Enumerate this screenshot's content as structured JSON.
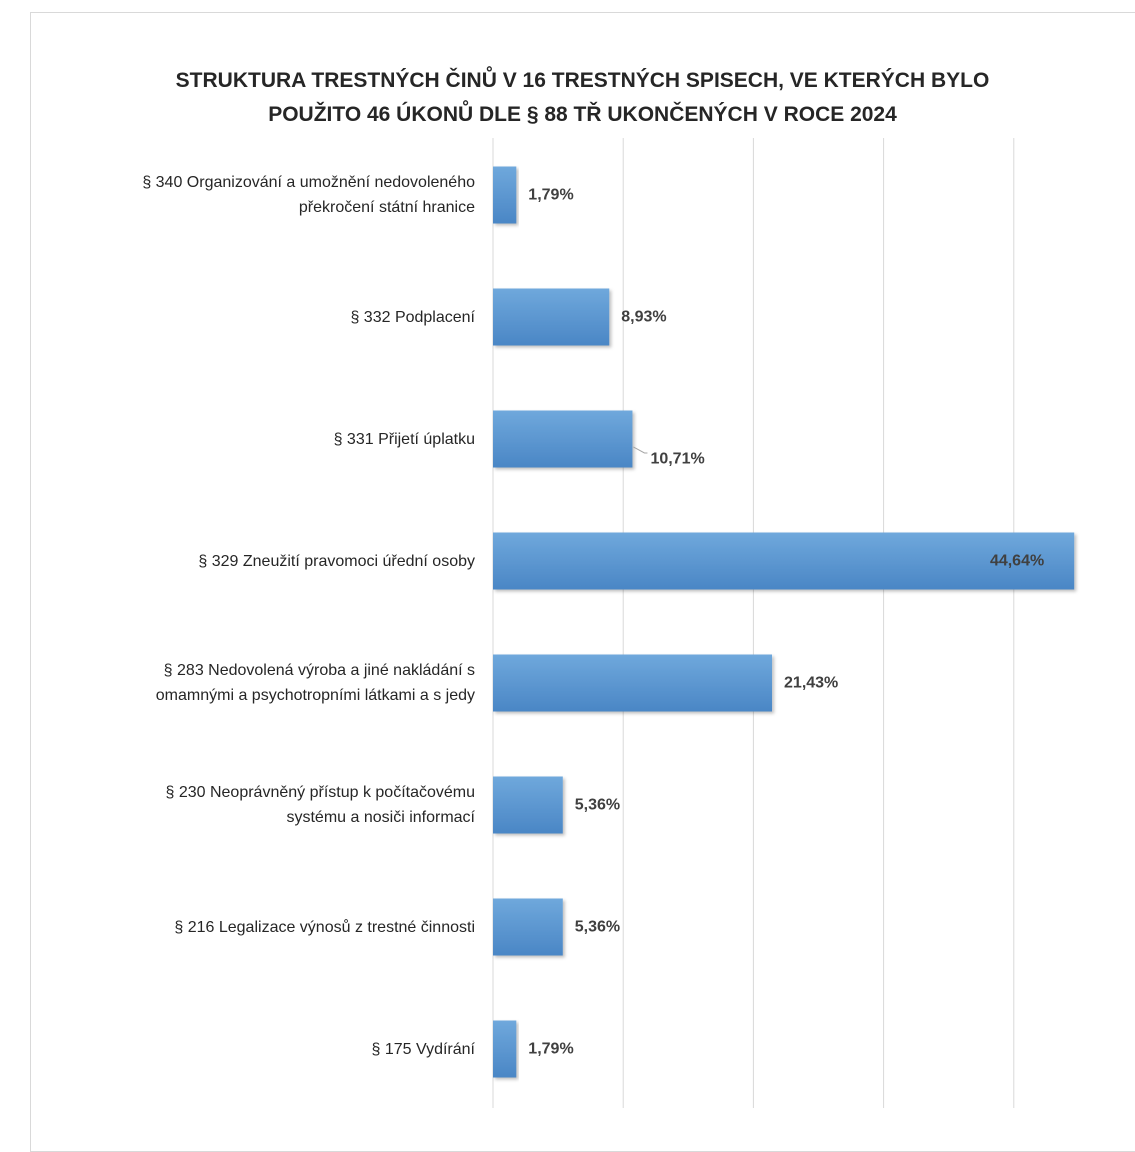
{
  "chart_data": {
    "type": "bar",
    "orientation": "horizontal",
    "title": "STRUKTURA TRESTNÝCH ČINŮ V 16 TRESTNÝCH SPISECH, VE KTERÝCH BYLO POUŽITO 46 ÚKONŮ DLE § 88 TŘ UKONČENÝCH V ROCE 2024",
    "title_lines": [
      "STRUKTURA TRESTNÝCH ČINŮ V 16 TRESTNÝCH SPISECH, VE KTERÝCH BYLO",
      "POUŽITO 46 ÚKONŮ DLE § 88 TŘ UKONČENÝCH V ROCE 2024"
    ],
    "categories": [
      "§ 340 Organizování a umožnění nedovoleného překročení státní hranice",
      "§ 332 Podplacení",
      "§ 331 Přijetí úplatku",
      "§ 329 Zneužití pravomoci úřední osoby",
      "§ 283 Nedovolená výroba a jiné nakládání s omamnými a psychotropními látkami a s jedy",
      "§ 230 Neoprávněný přístup k počítačovému systému a nosiči informací",
      "§ 216 Legalizace výnosů z trestné činnosti",
      "§ 175 Vydírání"
    ],
    "category_lines": [
      [
        "§ 340 Organizování a umožnění nedovoleného",
        "překročení státní hranice"
      ],
      [
        "§ 332 Podplacení"
      ],
      [
        "§ 331 Přijetí úplatku"
      ],
      [
        "§ 329 Zneužití pravomoci úřední osoby"
      ],
      [
        "§ 283 Nedovolená výroba a jiné nakládání s",
        "omamnými a psychotropními látkami a s jedy"
      ],
      [
        "§ 230 Neoprávněný přístup k počítačovému",
        "systému a nosiči informací"
      ],
      [
        "§ 216 Legalizace výnosů z trestné činnosti"
      ],
      [
        "§ 175 Vydírání"
      ]
    ],
    "values": [
      1.79,
      8.93,
      10.71,
      44.64,
      21.43,
      5.36,
      5.36,
      1.79
    ],
    "value_labels": [
      "1,79%",
      "8,93%",
      "10,71%",
      "44,64%",
      "21,43%",
      "5,36%",
      "5,36%",
      "1,79%"
    ],
    "xlim": [
      0,
      50
    ],
    "gridline_step": 10,
    "grid": true,
    "legend": "none",
    "bar_color": "#5b9bd5"
  }
}
